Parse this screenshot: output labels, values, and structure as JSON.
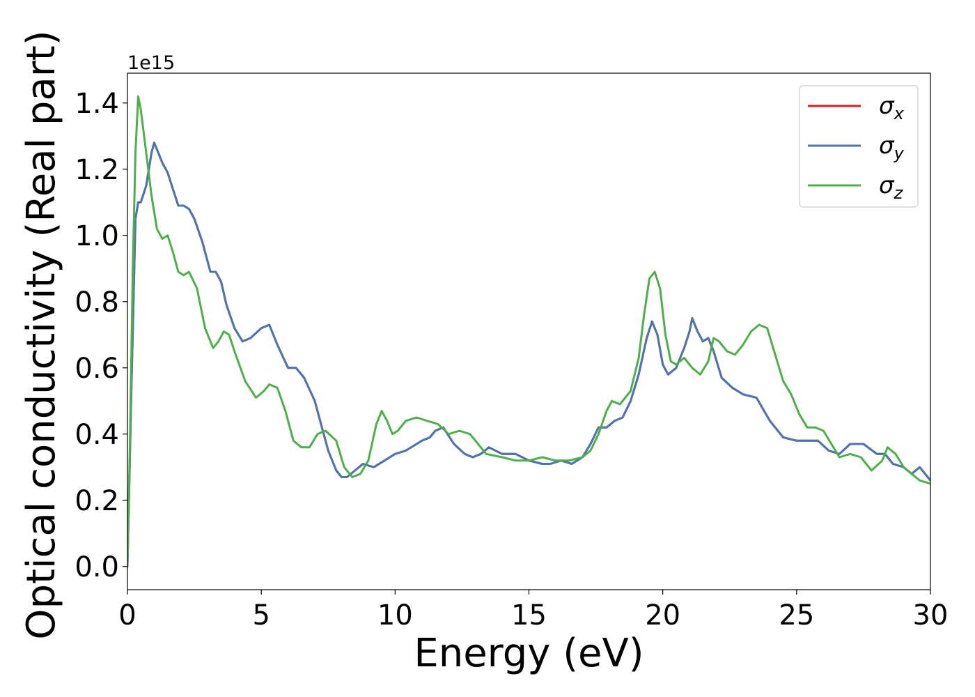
{
  "chart_data": {
    "type": "line",
    "title": "",
    "xlabel": "Energy (eV)",
    "ylabel": "Optical conductivity (Real part)",
    "y_offset_label": "1e15",
    "xlim": [
      0,
      30
    ],
    "ylim": [
      -0.07,
      1.49
    ],
    "x_ticks": [
      0,
      5,
      10,
      15,
      20,
      25,
      30
    ],
    "x_tick_labels": [
      "0",
      "5",
      "10",
      "15",
      "20",
      "25",
      "30"
    ],
    "y_ticks": [
      0.0,
      0.2,
      0.4,
      0.6,
      0.8,
      1.0,
      1.2,
      1.4
    ],
    "y_tick_labels": [
      "0.0",
      "0.2",
      "0.4",
      "0.6",
      "0.8",
      "1.0",
      "1.2",
      "1.4"
    ],
    "grid": false,
    "legend_position": "top-right",
    "series": [
      {
        "name": "σx",
        "legend_symbol": "σ",
        "legend_subscript": "x",
        "color": "#e41a1c",
        "x": [
          0,
          0.15,
          0.3,
          0.4,
          0.5,
          0.7,
          0.9,
          1.0,
          1.1,
          1.3,
          1.5,
          1.7,
          1.9,
          2.1,
          2.3,
          2.5,
          2.8,
          3.1,
          3.3,
          3.5,
          3.7,
          4.0,
          4.3,
          4.6,
          5.0,
          5.3,
          5.6,
          6.0,
          6.3,
          6.6,
          7.0,
          7.5,
          7.8,
          8.0,
          8.2,
          8.5,
          8.8,
          9.2,
          9.6,
          10.0,
          10.4,
          10.8,
          11.0,
          11.3,
          11.5,
          11.8,
          12.2,
          12.6,
          12.9,
          13.2,
          13.5,
          14.0,
          14.5,
          15.0,
          15.5,
          15.8,
          16.2,
          16.6,
          17.0,
          17.3,
          17.6,
          17.9,
          18.2,
          18.5,
          18.8,
          19.1,
          19.4,
          19.6,
          19.8,
          20.0,
          20.2,
          20.5,
          20.8,
          21.0,
          21.1,
          21.3,
          21.5,
          21.7,
          21.9,
          22.2,
          22.6,
          23.0,
          23.5,
          24.0,
          24.5,
          25.0,
          25.5,
          25.8,
          26.2,
          26.6,
          27.0,
          27.5,
          28.0,
          28.3,
          28.6,
          29.0,
          29.3,
          29.6,
          30.0
        ],
        "values": [
          0.0,
          0.55,
          1.05,
          1.1,
          1.1,
          1.15,
          1.25,
          1.28,
          1.26,
          1.22,
          1.19,
          1.14,
          1.09,
          1.09,
          1.08,
          1.05,
          0.98,
          0.89,
          0.89,
          0.86,
          0.79,
          0.72,
          0.68,
          0.69,
          0.72,
          0.73,
          0.67,
          0.6,
          0.6,
          0.57,
          0.5,
          0.35,
          0.29,
          0.27,
          0.27,
          0.29,
          0.31,
          0.3,
          0.32,
          0.34,
          0.35,
          0.37,
          0.38,
          0.39,
          0.41,
          0.42,
          0.37,
          0.34,
          0.33,
          0.34,
          0.36,
          0.34,
          0.34,
          0.32,
          0.31,
          0.31,
          0.32,
          0.31,
          0.33,
          0.37,
          0.42,
          0.42,
          0.44,
          0.45,
          0.5,
          0.58,
          0.69,
          0.74,
          0.7,
          0.61,
          0.58,
          0.6,
          0.66,
          0.71,
          0.75,
          0.71,
          0.68,
          0.69,
          0.65,
          0.57,
          0.54,
          0.52,
          0.51,
          0.44,
          0.39,
          0.38,
          0.38,
          0.38,
          0.35,
          0.34,
          0.37,
          0.37,
          0.34,
          0.34,
          0.31,
          0.3,
          0.28,
          0.3,
          0.26
        ]
      },
      {
        "name": "σy",
        "legend_symbol": "σ",
        "legend_subscript": "y",
        "color": "#4a76b0",
        "x": [
          0,
          0.15,
          0.3,
          0.4,
          0.5,
          0.7,
          0.9,
          1.0,
          1.1,
          1.3,
          1.5,
          1.7,
          1.9,
          2.1,
          2.3,
          2.5,
          2.8,
          3.1,
          3.3,
          3.5,
          3.7,
          4.0,
          4.3,
          4.6,
          5.0,
          5.3,
          5.6,
          6.0,
          6.3,
          6.6,
          7.0,
          7.5,
          7.8,
          8.0,
          8.2,
          8.5,
          8.8,
          9.2,
          9.6,
          10.0,
          10.4,
          10.8,
          11.0,
          11.3,
          11.5,
          11.8,
          12.2,
          12.6,
          12.9,
          13.2,
          13.5,
          14.0,
          14.5,
          15.0,
          15.5,
          15.8,
          16.2,
          16.6,
          17.0,
          17.3,
          17.6,
          17.9,
          18.2,
          18.5,
          18.8,
          19.1,
          19.4,
          19.6,
          19.8,
          20.0,
          20.2,
          20.5,
          20.8,
          21.0,
          21.1,
          21.3,
          21.5,
          21.7,
          21.9,
          22.2,
          22.6,
          23.0,
          23.5,
          24.0,
          24.5,
          25.0,
          25.5,
          25.8,
          26.2,
          26.6,
          27.0,
          27.5,
          28.0,
          28.3,
          28.6,
          29.0,
          29.3,
          29.6,
          30.0
        ],
        "values": [
          0.0,
          0.55,
          1.05,
          1.1,
          1.1,
          1.15,
          1.25,
          1.28,
          1.26,
          1.22,
          1.19,
          1.14,
          1.09,
          1.09,
          1.08,
          1.05,
          0.98,
          0.89,
          0.89,
          0.86,
          0.79,
          0.72,
          0.68,
          0.69,
          0.72,
          0.73,
          0.67,
          0.6,
          0.6,
          0.57,
          0.5,
          0.35,
          0.29,
          0.27,
          0.27,
          0.29,
          0.31,
          0.3,
          0.32,
          0.34,
          0.35,
          0.37,
          0.38,
          0.39,
          0.41,
          0.42,
          0.37,
          0.34,
          0.33,
          0.34,
          0.36,
          0.34,
          0.34,
          0.32,
          0.31,
          0.31,
          0.32,
          0.31,
          0.33,
          0.37,
          0.42,
          0.42,
          0.44,
          0.45,
          0.5,
          0.58,
          0.69,
          0.74,
          0.7,
          0.61,
          0.58,
          0.6,
          0.66,
          0.71,
          0.75,
          0.71,
          0.68,
          0.69,
          0.65,
          0.57,
          0.54,
          0.52,
          0.51,
          0.44,
          0.39,
          0.38,
          0.38,
          0.38,
          0.35,
          0.34,
          0.37,
          0.37,
          0.34,
          0.34,
          0.31,
          0.3,
          0.28,
          0.3,
          0.26
        ]
      },
      {
        "name": "σz",
        "legend_symbol": "σ",
        "legend_subscript": "z",
        "color": "#4daf4a",
        "x": [
          0,
          0.1,
          0.2,
          0.3,
          0.4,
          0.5,
          0.7,
          0.9,
          1.1,
          1.3,
          1.5,
          1.7,
          1.9,
          2.1,
          2.3,
          2.6,
          2.9,
          3.2,
          3.4,
          3.6,
          3.8,
          4.0,
          4.4,
          4.8,
          5.1,
          5.3,
          5.6,
          5.9,
          6.2,
          6.5,
          6.8,
          7.1,
          7.4,
          7.8,
          8.1,
          8.4,
          8.7,
          9.0,
          9.3,
          9.5,
          9.7,
          9.9,
          10.1,
          10.4,
          10.8,
          11.2,
          11.6,
          12.0,
          12.4,
          12.8,
          13.1,
          13.4,
          14.0,
          14.5,
          15.0,
          15.5,
          16.0,
          16.5,
          17.0,
          17.3,
          17.6,
          17.9,
          18.1,
          18.4,
          18.8,
          19.1,
          19.3,
          19.5,
          19.7,
          19.9,
          20.1,
          20.3,
          20.5,
          20.8,
          21.1,
          21.4,
          21.7,
          21.9,
          22.1,
          22.4,
          22.7,
          23.0,
          23.3,
          23.6,
          23.9,
          24.2,
          24.5,
          24.8,
          25.1,
          25.4,
          25.7,
          26.0,
          26.3,
          26.6,
          27.0,
          27.4,
          27.8,
          28.2,
          28.4,
          28.7,
          29.0,
          29.3,
          29.6,
          30.0
        ],
        "values": [
          0.0,
          0.4,
          0.9,
          1.25,
          1.42,
          1.38,
          1.25,
          1.12,
          1.02,
          0.99,
          1.0,
          0.95,
          0.89,
          0.88,
          0.89,
          0.84,
          0.72,
          0.66,
          0.68,
          0.71,
          0.7,
          0.65,
          0.56,
          0.51,
          0.53,
          0.55,
          0.54,
          0.47,
          0.38,
          0.36,
          0.36,
          0.4,
          0.41,
          0.38,
          0.3,
          0.27,
          0.28,
          0.32,
          0.43,
          0.47,
          0.44,
          0.4,
          0.41,
          0.44,
          0.45,
          0.44,
          0.43,
          0.4,
          0.41,
          0.4,
          0.37,
          0.34,
          0.33,
          0.32,
          0.32,
          0.33,
          0.32,
          0.32,
          0.33,
          0.35,
          0.4,
          0.47,
          0.5,
          0.49,
          0.53,
          0.63,
          0.76,
          0.87,
          0.89,
          0.84,
          0.7,
          0.62,
          0.61,
          0.63,
          0.6,
          0.58,
          0.62,
          0.69,
          0.68,
          0.65,
          0.64,
          0.67,
          0.71,
          0.73,
          0.72,
          0.64,
          0.56,
          0.52,
          0.46,
          0.42,
          0.42,
          0.41,
          0.37,
          0.33,
          0.34,
          0.33,
          0.29,
          0.32,
          0.36,
          0.34,
          0.3,
          0.28,
          0.26,
          0.25
        ]
      }
    ]
  }
}
